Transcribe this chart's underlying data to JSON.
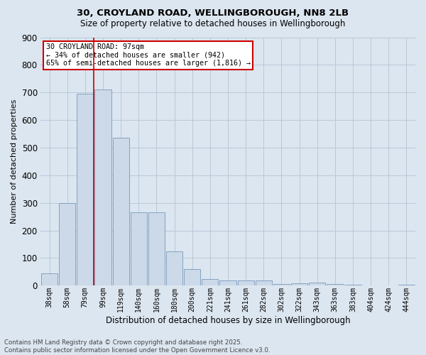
{
  "title_line1": "30, CROYLAND ROAD, WELLINGBOROUGH, NN8 2LB",
  "title_line2": "Size of property relative to detached houses in Wellingborough",
  "xlabel": "Distribution of detached houses by size in Wellingborough",
  "ylabel": "Number of detached properties",
  "categories": [
    "38sqm",
    "58sqm",
    "79sqm",
    "99sqm",
    "119sqm",
    "140sqm",
    "160sqm",
    "180sqm",
    "200sqm",
    "221sqm",
    "241sqm",
    "261sqm",
    "282sqm",
    "302sqm",
    "322sqm",
    "343sqm",
    "363sqm",
    "383sqm",
    "404sqm",
    "424sqm",
    "444sqm"
  ],
  "values": [
    45,
    300,
    695,
    710,
    535,
    265,
    265,
    125,
    60,
    25,
    18,
    20,
    18,
    5,
    8,
    10,
    5,
    3,
    1,
    0,
    3
  ],
  "bar_color": "#ccd9e8",
  "bar_edge_color": "#7799bb",
  "vline_color": "#cc0000",
  "vline_bar_index": 2,
  "annotation_text": "30 CROYLAND ROAD: 97sqm\n← 34% of detached houses are smaller (942)\n65% of semi-detached houses are larger (1,816) →",
  "annotation_box_color": "#ffffff",
  "annotation_box_edge": "#cc0000",
  "grid_color": "#b8c8d8",
  "background_color": "#dce6f0",
  "plot_bg_color": "#dce6f0",
  "footer_text": "Contains HM Land Registry data © Crown copyright and database right 2025.\nContains public sector information licensed under the Open Government Licence v3.0.",
  "ylim": [
    0,
    900
  ],
  "yticks": [
    0,
    100,
    200,
    300,
    400,
    500,
    600,
    700,
    800,
    900
  ]
}
